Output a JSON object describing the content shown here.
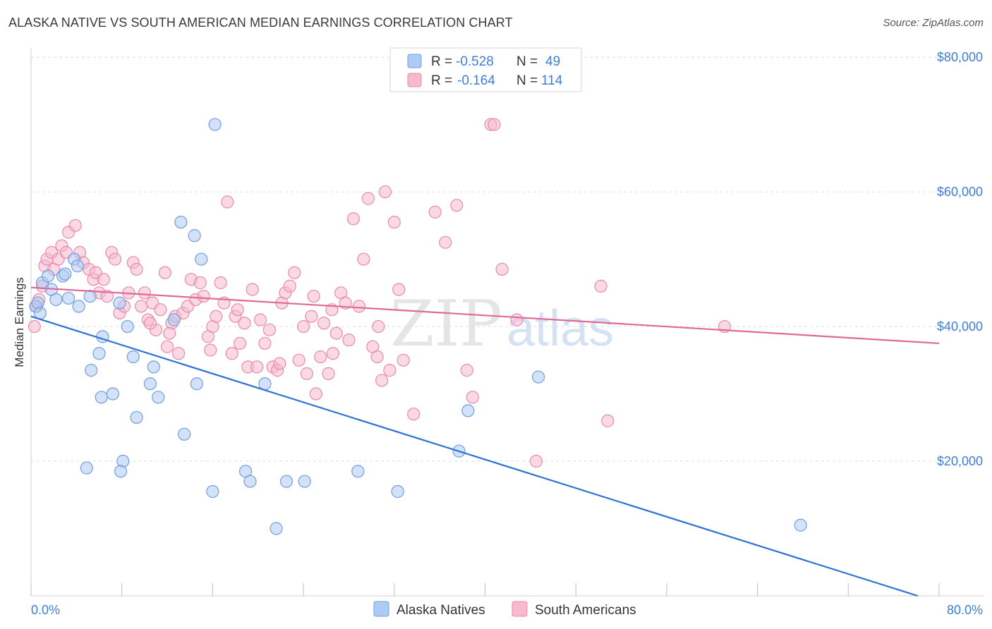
{
  "title": "ALASKA NATIVE VS SOUTH AMERICAN MEDIAN EARNINGS CORRELATION CHART",
  "source": "Source: ZipAtlas.com",
  "watermark": {
    "zip": "ZIP",
    "atlas": "atlas"
  },
  "legend": {
    "rows": [
      {
        "r_label": "R =",
        "r_value": "-0.528",
        "n_label": "N =",
        "n_value": "49",
        "color": "#aecbf3",
        "stroke": "#6f9fe0"
      },
      {
        "r_label": "R =",
        "r_value": "-0.164",
        "n_label": "N =",
        "n_value": "114",
        "color": "#f6b9cd",
        "stroke": "#e98aab"
      }
    ]
  },
  "bottom_legend": [
    {
      "label": "Alaska Natives",
      "color": "#aecbf3",
      "stroke": "#6f9fe0"
    },
    {
      "label": "South Americans",
      "color": "#f6b9cd",
      "stroke": "#e98aab"
    }
  ],
  "chart_data": {
    "type": "scatter",
    "title": "ALASKA NATIVE VS SOUTH AMERICAN MEDIAN EARNINGS CORRELATION CHART",
    "xlabel": "",
    "ylabel": "Median Earnings",
    "xlim": [
      0,
      80
    ],
    "ylim": [
      0,
      82000
    ],
    "x_tick_labels": [
      "0.0%",
      "80.0%"
    ],
    "y_ticks": [
      20000,
      40000,
      60000,
      80000
    ],
    "y_tick_labels": [
      "$20,000",
      "$40,000",
      "$60,000",
      "$80,000"
    ],
    "grid": true,
    "legend_position": "top-center",
    "series": [
      {
        "name": "Alaska Natives",
        "color": "#aecbf3",
        "stroke": "#6f9fe0",
        "line_color": "#2f72d3",
        "trend": {
          "x": [
            0,
            80
          ],
          "y": [
            41500,
            -1000
          ]
        },
        "points": [
          [
            0.4,
            43000
          ],
          [
            0.6,
            43500
          ],
          [
            0.8,
            42000
          ],
          [
            1.0,
            46500
          ],
          [
            1.5,
            47500
          ],
          [
            1.8,
            45500
          ],
          [
            2.2,
            44000
          ],
          [
            2.8,
            47500
          ],
          [
            3.0,
            47800
          ],
          [
            3.3,
            44200
          ],
          [
            3.8,
            50000
          ],
          [
            4.1,
            49000
          ],
          [
            4.2,
            43000
          ],
          [
            5.2,
            44500
          ],
          [
            6.3,
            38500
          ],
          [
            6.0,
            36000
          ],
          [
            5.3,
            33500
          ],
          [
            6.2,
            29500
          ],
          [
            7.2,
            30000
          ],
          [
            7.8,
            43500
          ],
          [
            8.5,
            40000
          ],
          [
            9.0,
            35500
          ],
          [
            10.5,
            31500
          ],
          [
            10.8,
            34000
          ],
          [
            11.2,
            29500
          ],
          [
            9.3,
            26500
          ],
          [
            8.1,
            20000
          ],
          [
            7.9,
            18500
          ],
          [
            4.9,
            19000
          ],
          [
            12.6,
            41000
          ],
          [
            13.2,
            55500
          ],
          [
            14.4,
            53500
          ],
          [
            15.0,
            50000
          ],
          [
            14.6,
            31500
          ],
          [
            13.5,
            24000
          ],
          [
            16.0,
            15500
          ],
          [
            16.2,
            70000
          ],
          [
            18.9,
            18500
          ],
          [
            19.3,
            17000
          ],
          [
            20.6,
            31500
          ],
          [
            21.6,
            10000
          ],
          [
            22.5,
            17000
          ],
          [
            24.1,
            17000
          ],
          [
            28.8,
            18500
          ],
          [
            32.3,
            15500
          ],
          [
            37.7,
            21500
          ],
          [
            38.5,
            27500
          ],
          [
            44.7,
            32500
          ],
          [
            67.8,
            10500
          ]
        ]
      },
      {
        "name": "South Americans",
        "color": "#f6b9cd",
        "stroke": "#e98aab",
        "line_color": "#e06a96",
        "trend": {
          "x": [
            0,
            80
          ],
          "y": [
            45800,
            37500
          ]
        },
        "points": [
          [
            0.3,
            40000
          ],
          [
            0.5,
            43000
          ],
          [
            0.7,
            44000
          ],
          [
            1.0,
            46000
          ],
          [
            1.2,
            49000
          ],
          [
            1.4,
            50000
          ],
          [
            1.8,
            51000
          ],
          [
            2.0,
            48500
          ],
          [
            2.4,
            50000
          ],
          [
            2.7,
            52000
          ],
          [
            3.1,
            51000
          ],
          [
            3.3,
            54000
          ],
          [
            3.9,
            55000
          ],
          [
            4.3,
            51000
          ],
          [
            4.6,
            49500
          ],
          [
            5.1,
            48500
          ],
          [
            5.5,
            47000
          ],
          [
            5.7,
            48000
          ],
          [
            6.0,
            45000
          ],
          [
            6.4,
            47000
          ],
          [
            6.7,
            44500
          ],
          [
            7.1,
            51000
          ],
          [
            7.4,
            50000
          ],
          [
            7.8,
            42000
          ],
          [
            8.2,
            43000
          ],
          [
            8.6,
            45000
          ],
          [
            9.0,
            49500
          ],
          [
            9.3,
            48500
          ],
          [
            9.7,
            43000
          ],
          [
            10.0,
            45000
          ],
          [
            10.3,
            41000
          ],
          [
            10.7,
            43500
          ],
          [
            11.0,
            39500
          ],
          [
            11.4,
            42500
          ],
          [
            11.8,
            48000
          ],
          [
            12.0,
            37000
          ],
          [
            12.4,
            40500
          ],
          [
            12.7,
            41500
          ],
          [
            13.0,
            36000
          ],
          [
            13.4,
            42000
          ],
          [
            13.8,
            43000
          ],
          [
            14.1,
            47000
          ],
          [
            14.5,
            44000
          ],
          [
            14.9,
            46500
          ],
          [
            15.2,
            44500
          ],
          [
            15.6,
            38500
          ],
          [
            16.0,
            40000
          ],
          [
            16.3,
            41500
          ],
          [
            16.7,
            46500
          ],
          [
            17.0,
            43500
          ],
          [
            17.3,
            58500
          ],
          [
            17.7,
            36000
          ],
          [
            18.0,
            41500
          ],
          [
            18.4,
            37500
          ],
          [
            18.8,
            40500
          ],
          [
            19.1,
            34000
          ],
          [
            19.5,
            45500
          ],
          [
            19.9,
            34000
          ],
          [
            20.2,
            41000
          ],
          [
            20.6,
            37500
          ],
          [
            21.0,
            39500
          ],
          [
            21.3,
            34000
          ],
          [
            21.7,
            33500
          ],
          [
            22.1,
            43500
          ],
          [
            22.4,
            45000
          ],
          [
            22.8,
            46000
          ],
          [
            23.2,
            48000
          ],
          [
            23.6,
            35000
          ],
          [
            24.0,
            40000
          ],
          [
            24.3,
            33000
          ],
          [
            24.7,
            41500
          ],
          [
            25.1,
            30000
          ],
          [
            25.5,
            35500
          ],
          [
            25.8,
            40500
          ],
          [
            26.2,
            33000
          ],
          [
            26.6,
            36000
          ],
          [
            26.9,
            39000
          ],
          [
            27.3,
            45000
          ],
          [
            27.7,
            43500
          ],
          [
            28.0,
            38000
          ],
          [
            28.4,
            56000
          ],
          [
            28.9,
            43000
          ],
          [
            29.3,
            50000
          ],
          [
            29.7,
            59000
          ],
          [
            30.1,
            37000
          ],
          [
            30.5,
            35500
          ],
          [
            30.9,
            32000
          ],
          [
            31.2,
            60000
          ],
          [
            31.6,
            33500
          ],
          [
            32.0,
            55500
          ],
          [
            32.4,
            45500
          ],
          [
            32.8,
            35000
          ],
          [
            33.7,
            27000
          ],
          [
            35.6,
            57000
          ],
          [
            36.5,
            52500
          ],
          [
            37.5,
            58000
          ],
          [
            38.4,
            33500
          ],
          [
            38.9,
            29500
          ],
          [
            40.5,
            70000
          ],
          [
            40.8,
            70000
          ],
          [
            41.5,
            48500
          ],
          [
            42.8,
            41000
          ],
          [
            44.5,
            20000
          ],
          [
            50.2,
            46000
          ],
          [
            50.8,
            26000
          ],
          [
            61.1,
            40000
          ],
          [
            12.2,
            39000
          ],
          [
            18.2,
            42500
          ],
          [
            21.9,
            34500
          ],
          [
            26.5,
            42500
          ],
          [
            15.8,
            36500
          ],
          [
            10.5,
            40500
          ],
          [
            30.6,
            40000
          ],
          [
            24.9,
            44500
          ]
        ]
      }
    ]
  }
}
